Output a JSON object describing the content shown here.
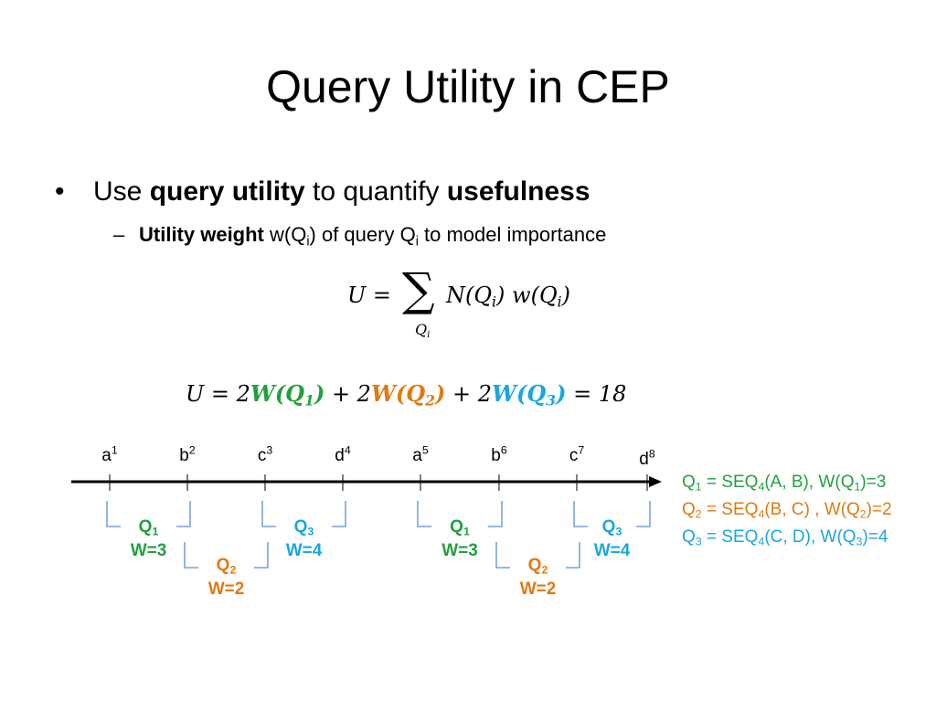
{
  "slide": {
    "title": "Query Utility in CEP"
  },
  "bullet1": {
    "marker": "•",
    "pre": "Use ",
    "bold1": "query utility",
    "mid": " to quantify ",
    "bold2": "usefulness"
  },
  "bullet2": {
    "marker": "–",
    "bold": "Utility weight",
    "w": " w(Q",
    "w_sub": "i",
    "mid": ") of query Q",
    "q_sub": "i",
    "post": " to model importance"
  },
  "formula1": {
    "lhs": "U =",
    "sum": "∑",
    "sum_index": "Q",
    "sum_index_sub": "i",
    "rhs": "N(Q",
    "rhs_sub1": "i",
    "rhs_mid": ") w(Q",
    "rhs_sub2": "i",
    "rhs_end": ")"
  },
  "formula2": {
    "lhs": "U = 2",
    "t1": "W(Q",
    "t1_sub": "1",
    "t1_end": ")",
    "plus1": " + 2",
    "t2": "W(Q",
    "t2_sub": "2",
    "t2_end": ")",
    "plus2": " + 2",
    "t3": "W(Q",
    "t3_sub": "3",
    "t3_end": ")",
    "result": " = 18"
  },
  "timeline": {
    "events": [
      {
        "letter": "a",
        "index": "1"
      },
      {
        "letter": "b",
        "index": "2"
      },
      {
        "letter": "c",
        "index": "3"
      },
      {
        "letter": "d",
        "index": "4"
      },
      {
        "letter": "a",
        "index": "5"
      },
      {
        "letter": "b",
        "index": "6"
      },
      {
        "letter": "c",
        "index": "7"
      },
      {
        "letter": "d",
        "index": "8"
      }
    ],
    "windows": [
      {
        "q": "Q",
        "q_sub": "1",
        "w": "W=3"
      },
      {
        "q": "Q",
        "q_sub": "2",
        "w": "W=2"
      },
      {
        "q": "Q",
        "q_sub": "3",
        "w": "W=4"
      },
      {
        "q": "Q",
        "q_sub": "1",
        "w": "W=3"
      },
      {
        "q": "Q",
        "q_sub": "2",
        "w": "W=2"
      },
      {
        "q": "Q",
        "q_sub": "3",
        "w": "W=4"
      }
    ]
  },
  "legend": [
    {
      "q": "Q",
      "q_sub": "1",
      "a": " = SEQ",
      "a_sub": "4",
      "b": "(A, B), W(Q",
      "b_sub": "1",
      "c": ")=3"
    },
    {
      "q": "Q",
      "q_sub": "2",
      "a": " = SEQ",
      "a_sub": "4",
      "b": "(B, C) , W(Q",
      "b_sub": "2",
      "c": ")=2"
    },
    {
      "q": "Q",
      "q_sub": "3",
      "a": " = SEQ",
      "a_sub": "4",
      "b": "(C, D), W(Q",
      "b_sub": "3",
      "c": ")=4"
    }
  ],
  "colors": {
    "q1": "#22a040",
    "q2": "#e07a10",
    "q3": "#1aa6e0",
    "bracket": "#5b8fd0"
  }
}
